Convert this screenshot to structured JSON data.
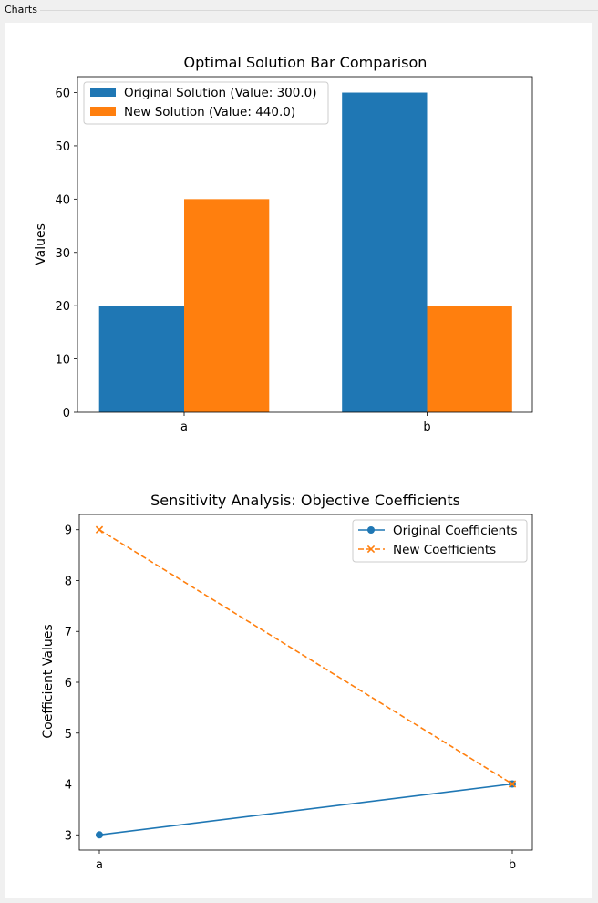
{
  "window": {
    "title": "Charts"
  },
  "colors": {
    "series1": "#1f77b4",
    "series2": "#ff7f0e",
    "axis": "#000000"
  },
  "chart_data": [
    {
      "type": "bar",
      "title": "Optimal Solution Bar Comparison",
      "xlabel": "",
      "ylabel": "Values",
      "categories": [
        "a",
        "b"
      ],
      "ylim": [
        0,
        63
      ],
      "yticks": [
        0,
        10,
        20,
        30,
        40,
        50,
        60
      ],
      "grid": false,
      "legend_position": "top-left",
      "series": [
        {
          "name": "Original Solution (Value: 300.0)",
          "values": [
            20,
            60
          ],
          "color": "#1f77b4"
        },
        {
          "name": "New Solution (Value: 440.0)",
          "values": [
            40,
            20
          ],
          "color": "#ff7f0e"
        }
      ]
    },
    {
      "type": "line",
      "title": "Sensitivity Analysis: Objective Coefficients",
      "xlabel": "",
      "ylabel": "Coefficient Values",
      "categories": [
        "a",
        "b"
      ],
      "ylim": [
        2.7,
        9.3
      ],
      "yticks": [
        3,
        4,
        5,
        6,
        7,
        8,
        9
      ],
      "grid": false,
      "legend_position": "top-right",
      "series": [
        {
          "name": "Original Coefficients",
          "values": [
            3,
            4
          ],
          "color": "#1f77b4",
          "marker": "circle",
          "linestyle": "solid"
        },
        {
          "name": "New Coefficients",
          "values": [
            9,
            4
          ],
          "color": "#ff7f0e",
          "marker": "x",
          "linestyle": "dashed"
        }
      ]
    }
  ]
}
